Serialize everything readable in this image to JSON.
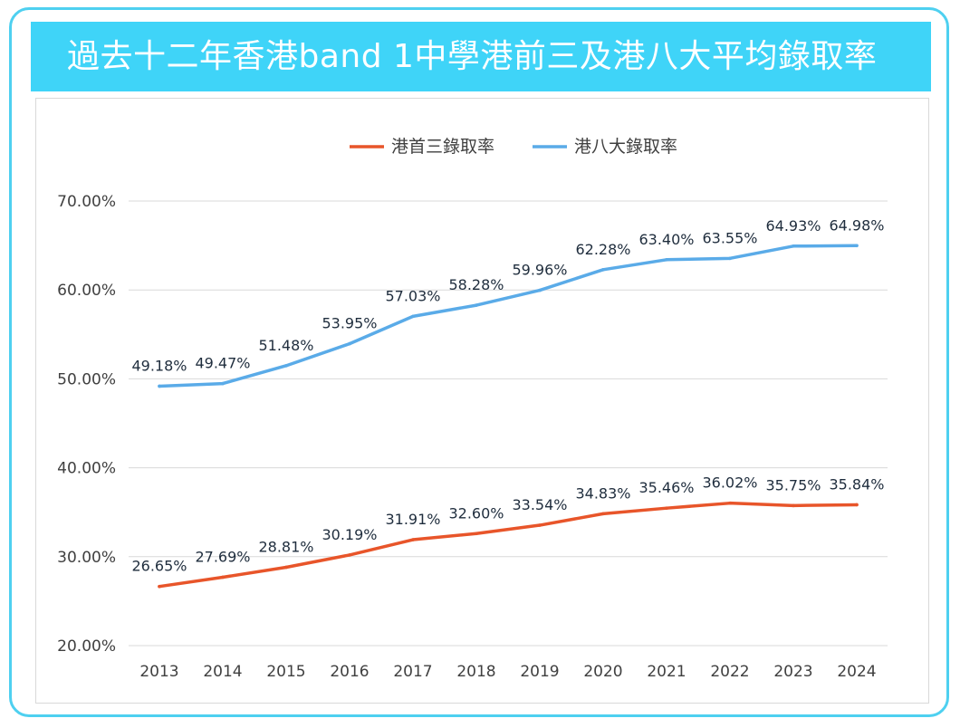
{
  "title": "過去十二年香港band 1中學港前三及港八大平均錄取率",
  "colors": {
    "banner": "#3fd4f8",
    "frame_border": "#4ed0f0",
    "series_top3": "#e8552a",
    "series_big8": "#5aabe8",
    "grid": "#d9d9d9",
    "tick_text": "#404040",
    "label_text": "#1f2d3d"
  },
  "chart_data": {
    "type": "line",
    "title": "過去十二年香港band 1中學港前三及港八大平均錄取率",
    "xlabel": "",
    "ylabel": "",
    "x": [
      "2013",
      "2014",
      "2015",
      "2016",
      "2017",
      "2018",
      "2019",
      "2020",
      "2021",
      "2022",
      "2023",
      "2024"
    ],
    "ylim": [
      20,
      70
    ],
    "yticks": [
      "20.00%",
      "30.00%",
      "40.00%",
      "50.00%",
      "60.00%",
      "70.00%"
    ],
    "grid": true,
    "legend_position": "top-center",
    "series": [
      {
        "name": "港首三錄取率",
        "color": "#e8552a",
        "values": [
          26.65,
          27.69,
          28.81,
          30.19,
          31.91,
          32.6,
          33.54,
          34.83,
          35.46,
          36.02,
          35.75,
          35.84
        ],
        "labels": [
          "26.65%",
          "27.69%",
          "28.81%",
          "30.19%",
          "31.91%",
          "32.60%",
          "33.54%",
          "34.83%",
          "35.46%",
          "36.02%",
          "35.75%",
          "35.84%"
        ]
      },
      {
        "name": "港八大錄取率",
        "color": "#5aabe8",
        "values": [
          49.18,
          49.47,
          51.48,
          53.95,
          57.03,
          58.28,
          59.96,
          62.28,
          63.4,
          63.55,
          64.93,
          64.98
        ],
        "labels": [
          "49.18%",
          "49.47%",
          "51.48%",
          "53.95%",
          "57.03%",
          "58.28%",
          "59.96%",
          "62.28%",
          "63.40%",
          "63.55%",
          "64.93%",
          "64.98%"
        ]
      }
    ]
  }
}
